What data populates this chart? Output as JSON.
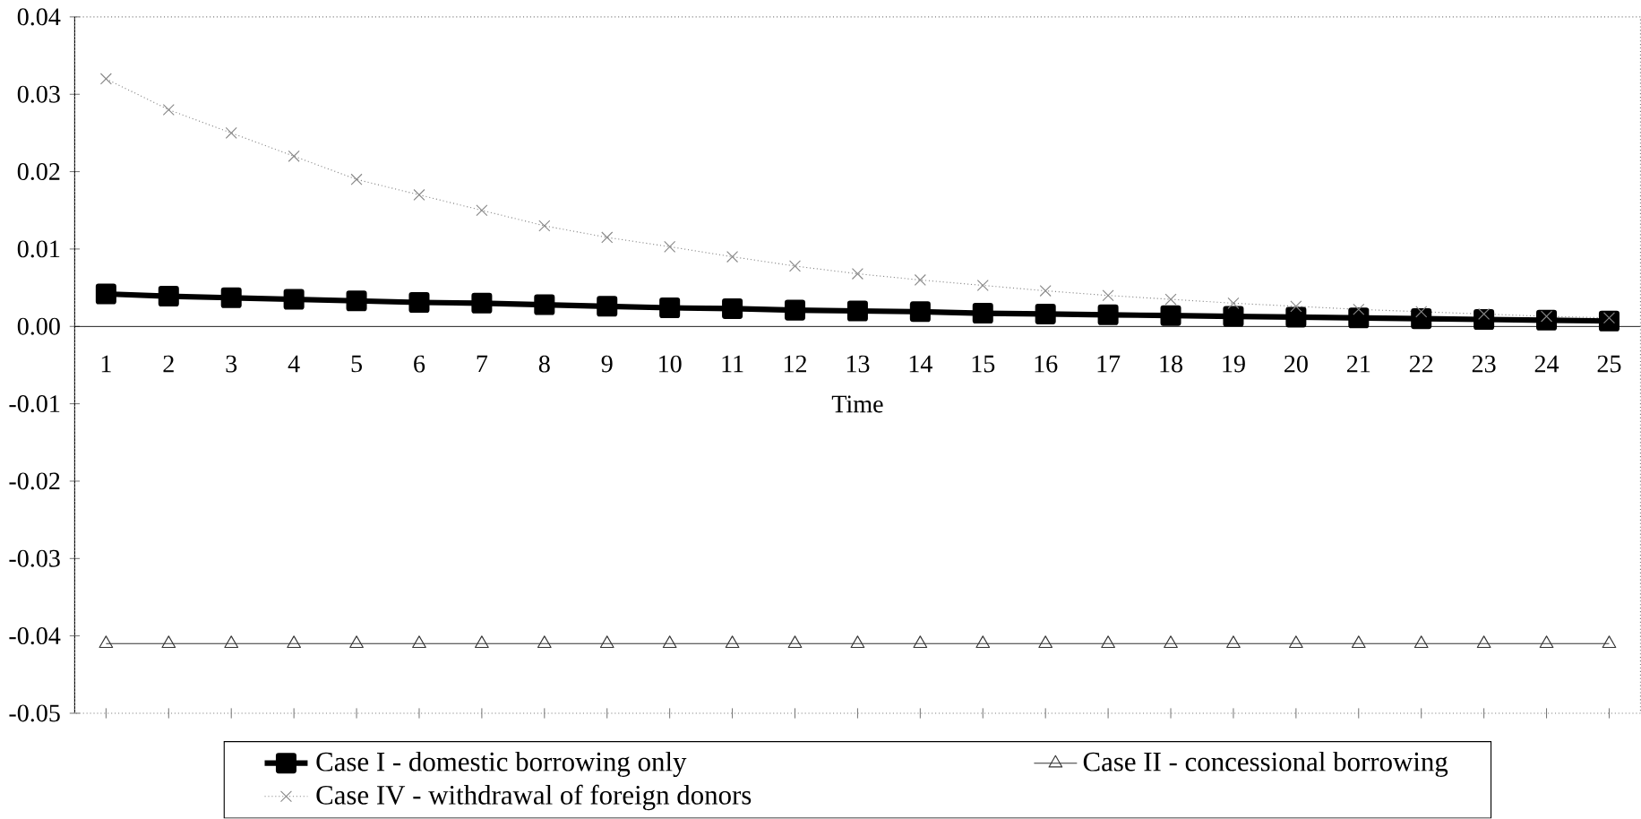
{
  "chart_data": {
    "type": "line",
    "xlabel": "Time",
    "categories": [
      "1",
      "2",
      "3",
      "4",
      "5",
      "6",
      "7",
      "8",
      "9",
      "10",
      "11",
      "12",
      "13",
      "14",
      "15",
      "16",
      "17",
      "18",
      "19",
      "20",
      "21",
      "22",
      "23",
      "24",
      "25"
    ],
    "ylim": [
      -0.05,
      0.04
    ],
    "yticks": [
      {
        "value": -0.05,
        "label": "-0.05"
      },
      {
        "value": -0.04,
        "label": "-0.04"
      },
      {
        "value": -0.03,
        "label": "-0.03"
      },
      {
        "value": -0.02,
        "label": "-0.02"
      },
      {
        "value": -0.01,
        "label": "-0.01"
      },
      {
        "value": 0,
        "label": "0.00"
      },
      {
        "value": 0.01,
        "label": "0.01"
      },
      {
        "value": 0.02,
        "label": "0.02"
      },
      {
        "value": 0.03,
        "label": "0.03"
      },
      {
        "value": 0.04,
        "label": "0.04"
      }
    ],
    "legend": "bottom",
    "series": [
      {
        "name": "Case I - domestic borrowing only",
        "color": "#000000",
        "marker": "square",
        "line_style": "solid",
        "values": [
          0.0042,
          0.0039,
          0.0037,
          0.0035,
          0.0033,
          0.0031,
          0.003,
          0.0028,
          0.0026,
          0.0024,
          0.0023,
          0.0021,
          0.002,
          0.0019,
          0.0017,
          0.0016,
          0.0015,
          0.0014,
          0.0013,
          0.0012,
          0.0011,
          0.001,
          0.0009,
          0.0008,
          0.0007
        ]
      },
      {
        "name": "Case II - concessional borrowing",
        "color": "#333333",
        "marker": "triangle",
        "line_style": "solid",
        "values": [
          -0.041,
          -0.041,
          -0.041,
          -0.041,
          -0.041,
          -0.041,
          -0.041,
          -0.041,
          -0.041,
          -0.041,
          -0.041,
          -0.041,
          -0.041,
          -0.041,
          -0.041,
          -0.041,
          -0.041,
          -0.041,
          -0.041,
          -0.041,
          -0.041,
          -0.041,
          -0.041,
          -0.041,
          -0.041
        ]
      },
      {
        "name": "Case IV - withdrawal of foreign donors",
        "color": "#888888",
        "marker": "cross",
        "line_style": "dotted",
        "values": [
          0.032,
          0.028,
          0.025,
          0.022,
          0.019,
          0.017,
          0.015,
          0.013,
          0.0115,
          0.0103,
          0.009,
          0.0078,
          0.0068,
          0.006,
          0.0053,
          0.0046,
          0.004,
          0.0035,
          0.003,
          0.0026,
          0.0022,
          0.0019,
          0.0016,
          0.0013,
          0.0011
        ]
      }
    ]
  }
}
